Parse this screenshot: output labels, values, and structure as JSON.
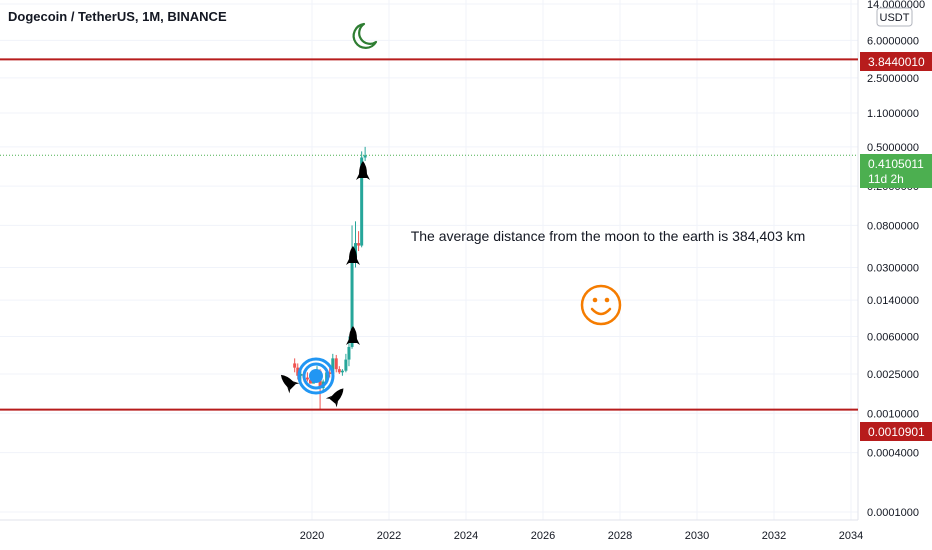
{
  "header": {
    "title": "Dogecoin / TetherUS, 1M, BINANCE"
  },
  "currency_badge": "USDT",
  "annotation_text": "The average distance from the moon to the earth is 384,403 km",
  "price_tags": {
    "upper_line": "3.8440010",
    "current_price": "0.4105011",
    "countdown": "11d 2h",
    "lower_line": "0.0010901"
  },
  "colors": {
    "up": "#26a69a",
    "down": "#ef5350",
    "horizontal_line": "#b71c1c",
    "current_price": "#4caf50",
    "moon": "#2e7d32",
    "smiley": "#f57c00",
    "target": "#2196f3",
    "text": "#131722",
    "axis_text": "#131722"
  },
  "icons": [
    "moon-icon",
    "smiley-icon",
    "target-icon",
    "rocket-icon"
  ],
  "chart_data": {
    "type": "candlestick",
    "title": "Dogecoin / TetherUS, 1M, BINANCE",
    "y_scale": "log",
    "ylim": [
      0.0001,
      14.0
    ],
    "xlim": [
      2018.0,
      2034.0
    ],
    "y_ticks": [
      "14.0000000",
      "6.0000000",
      "2.5000000",
      "1.1000000",
      "0.5000000",
      "0.2000000",
      "0.0800000",
      "0.0300000",
      "0.0140000",
      "0.0060000",
      "0.0025000",
      "0.0010000",
      "0.0004000",
      "0.0001000"
    ],
    "x_ticks": [
      "2020",
      "2022",
      "2024",
      "2026",
      "2028",
      "2030",
      "2032",
      "2034"
    ],
    "horizontal_lines": [
      3.844001,
      0.0010901
    ],
    "current_price": 0.4105011,
    "grid": true,
    "candles": [
      {
        "t": 2019.55,
        "o": 0.0032,
        "h": 0.0036,
        "l": 0.0026,
        "c": 0.0029
      },
      {
        "t": 2019.63,
        "o": 0.0029,
        "h": 0.0032,
        "l": 0.0022,
        "c": 0.0024
      },
      {
        "t": 2019.71,
        "o": 0.0024,
        "h": 0.0028,
        "l": 0.0021,
        "c": 0.0025
      },
      {
        "t": 2019.79,
        "o": 0.0025,
        "h": 0.0027,
        "l": 0.0021,
        "c": 0.0023
      },
      {
        "t": 2019.88,
        "o": 0.0023,
        "h": 0.0026,
        "l": 0.0021,
        "c": 0.0022
      },
      {
        "t": 2019.96,
        "o": 0.0022,
        "h": 0.0026,
        "l": 0.002,
        "c": 0.002
      },
      {
        "t": 2020.04,
        "o": 0.002,
        "h": 0.0026,
        "l": 0.002,
        "c": 0.0025
      },
      {
        "t": 2020.13,
        "o": 0.0025,
        "h": 0.003,
        "l": 0.0023,
        "c": 0.0027
      },
      {
        "t": 2020.21,
        "o": 0.0027,
        "h": 0.0028,
        "l": 0.0011,
        "c": 0.0018
      },
      {
        "t": 2020.29,
        "o": 0.0018,
        "h": 0.0022,
        "l": 0.0017,
        "c": 0.0021
      },
      {
        "t": 2020.38,
        "o": 0.0021,
        "h": 0.0028,
        "l": 0.002,
        "c": 0.0026
      },
      {
        "t": 2020.46,
        "o": 0.0026,
        "h": 0.0029,
        "l": 0.0023,
        "c": 0.0025
      },
      {
        "t": 2020.54,
        "o": 0.0025,
        "h": 0.004,
        "l": 0.0024,
        "c": 0.0036
      },
      {
        "t": 2020.63,
        "o": 0.0036,
        "h": 0.0039,
        "l": 0.0026,
        "c": 0.0028
      },
      {
        "t": 2020.71,
        "o": 0.0028,
        "h": 0.003,
        "l": 0.0025,
        "c": 0.0026
      },
      {
        "t": 2020.79,
        "o": 0.0026,
        "h": 0.0028,
        "l": 0.0024,
        "c": 0.0027
      },
      {
        "t": 2020.88,
        "o": 0.0027,
        "h": 0.004,
        "l": 0.0026,
        "c": 0.0035
      },
      {
        "t": 2020.96,
        "o": 0.0035,
        "h": 0.006,
        "l": 0.003,
        "c": 0.0047
      },
      {
        "t": 2021.04,
        "o": 0.0047,
        "h": 0.08,
        "l": 0.0045,
        "c": 0.035
      },
      {
        "t": 2021.13,
        "o": 0.035,
        "h": 0.088,
        "l": 0.03,
        "c": 0.053
      },
      {
        "t": 2021.21,
        "o": 0.053,
        "h": 0.07,
        "l": 0.044,
        "c": 0.05
      },
      {
        "t": 2021.29,
        "o": 0.05,
        "h": 0.45,
        "l": 0.048,
        "c": 0.39
      },
      {
        "t": 2021.38,
        "o": 0.39,
        "h": 0.5,
        "l": 0.36,
        "c": 0.4105
      }
    ]
  }
}
